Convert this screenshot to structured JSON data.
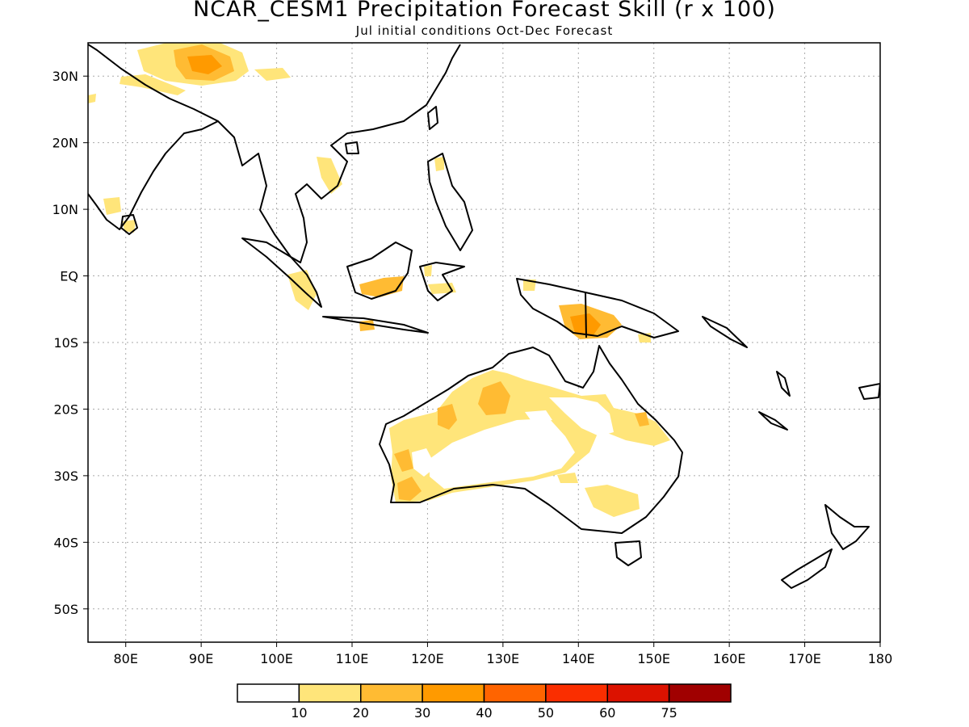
{
  "title": "NCAR_CESM1 Precipitation Forecast Skill (r x 100)",
  "subtitle": "Jul initial conditions  Oct-Dec Forecast",
  "map": {
    "lon_range": [
      75,
      180
    ],
    "lat_range": [
      -55,
      35
    ],
    "grid": true,
    "x_ticks": [
      {
        "value": 80,
        "label": "80E"
      },
      {
        "value": 90,
        "label": "90E"
      },
      {
        "value": 100,
        "label": "100E"
      },
      {
        "value": 110,
        "label": "110E"
      },
      {
        "value": 120,
        "label": "120E"
      },
      {
        "value": 130,
        "label": "130E"
      },
      {
        "value": 140,
        "label": "140E"
      },
      {
        "value": 150,
        "label": "150E"
      },
      {
        "value": 160,
        "label": "160E"
      },
      {
        "value": 170,
        "label": "170E"
      },
      {
        "value": 180,
        "label": "180"
      }
    ],
    "y_ticks": [
      {
        "value": 30,
        "label": "30N"
      },
      {
        "value": 20,
        "label": "20N"
      },
      {
        "value": 10,
        "label": "10N"
      },
      {
        "value": 0,
        "label": "EQ"
      },
      {
        "value": -10,
        "label": "10S"
      },
      {
        "value": -20,
        "label": "20S"
      },
      {
        "value": -30,
        "label": "30S"
      },
      {
        "value": -40,
        "label": "40S"
      },
      {
        "value": -50,
        "label": "50S"
      }
    ]
  },
  "colorbar": {
    "colors": [
      "#ffffff",
      "#ffe57a",
      "#ffbb33",
      "#ff9a00",
      "#ff6400",
      "#fa2e00",
      "#dc1200",
      "#a00000"
    ],
    "labels": [
      "10",
      "20",
      "30",
      "40",
      "50",
      "60",
      "75"
    ]
  }
}
